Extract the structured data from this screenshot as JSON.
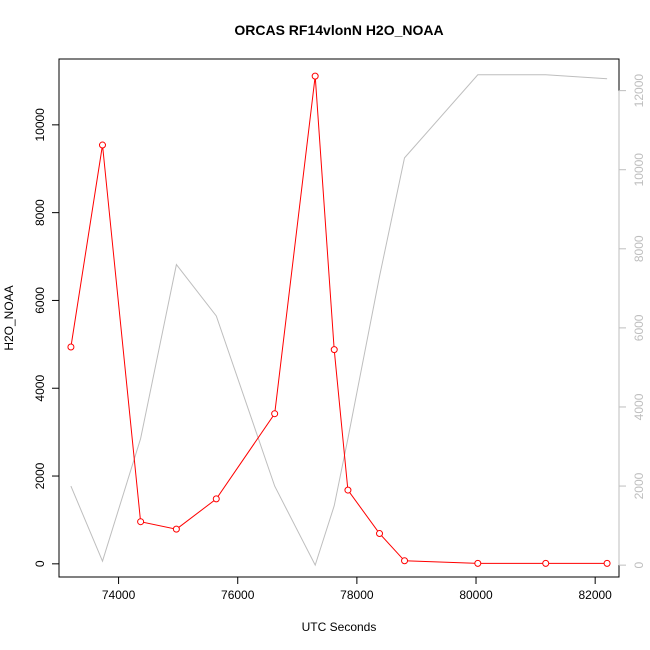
{
  "chart_data": {
    "type": "line",
    "title": "ORCAS RF14vlonN H2O_NOAA",
    "xlabel": "UTC Seconds",
    "ylabel": "H2O_NOAA",
    "xlim": [
      73000,
      82400
    ],
    "ylim": [
      -300,
      11500
    ],
    "y2lim": [
      -300,
      12800
    ],
    "x_ticks": [
      74000,
      76000,
      78000,
      80000,
      82000
    ],
    "y_ticks": [
      0,
      2000,
      4000,
      6000,
      8000,
      10000
    ],
    "y2_ticks": [
      0,
      2000,
      4000,
      6000,
      8000,
      10000,
      12000
    ],
    "colors": {
      "primary": "#ff0000",
      "secondary": "#bebebe",
      "axis": "#000000"
    },
    "series": [
      {
        "axis": "left",
        "style": "line-with-open-circles",
        "x": [
          73200,
          73730,
          74370,
          74970,
          75640,
          76620,
          77300,
          77620,
          77850,
          78380,
          78800,
          80030,
          81170,
          82200
        ],
        "y": [
          4940,
          9540,
          960,
          790,
          1480,
          3420,
          11110,
          4880,
          1680,
          690,
          70,
          10,
          10,
          10
        ]
      },
      {
        "axis": "right",
        "style": "line",
        "x": [
          73200,
          73730,
          74370,
          74970,
          75640,
          76620,
          77300,
          77620,
          77850,
          78380,
          78800,
          80030,
          81170,
          82200
        ],
        "y": [
          2000,
          100,
          3200,
          7600,
          6300,
          2000,
          0,
          1500,
          3200,
          7300,
          10300,
          12400,
          12400,
          12300
        ]
      }
    ]
  }
}
